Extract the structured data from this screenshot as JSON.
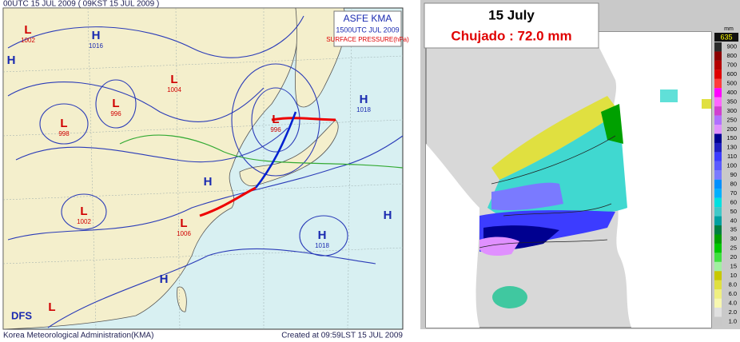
{
  "left_map": {
    "header": "00UTC 15 JUL 2009 ( 09KST 15 JUL 2009 )",
    "info_box": [
      "ASFE  KMA",
      "1500UTC JUL 2009",
      "SURFACE PRESSURE(hPa)"
    ],
    "logo": "DFS",
    "footer_left": "Korea Meteorological Administration(KMA)",
    "footer_right": "Created at 09:59LST 15 JUL 2009",
    "pressure_centers": [
      {
        "type": "L",
        "value": "1002"
      },
      {
        "type": "H",
        "value": "1016"
      },
      {
        "type": "H"
      },
      {
        "type": "L",
        "value": "996"
      },
      {
        "type": "L",
        "value": "998"
      },
      {
        "type": "L",
        "value": "1004"
      },
      {
        "type": "L",
        "value": "996"
      },
      {
        "type": "H"
      },
      {
        "type": "L",
        "value": "1002"
      },
      {
        "type": "L",
        "value": "1006"
      },
      {
        "type": "H",
        "value": "1018"
      },
      {
        "type": "H"
      },
      {
        "type": "H"
      },
      {
        "type": "L"
      },
      {
        "type": "H",
        "value": "1018"
      }
    ]
  },
  "right_map": {
    "title": "15 July",
    "subtitle": "Chujado : 72.0 mm",
    "max_label": "635",
    "unit": "mm",
    "legend": [
      {
        "label": "900",
        "color": "#2b2b2b"
      },
      {
        "label": "800",
        "color": "#8c0000"
      },
      {
        "label": "700",
        "color": "#b40000"
      },
      {
        "label": "600",
        "color": "#e00000"
      },
      {
        "label": "500",
        "color": "#ff3c3c"
      },
      {
        "label": "400",
        "color": "#ff00ff"
      },
      {
        "label": "350",
        "color": "#ff66ff"
      },
      {
        "label": "300",
        "color": "#d040d0"
      },
      {
        "label": "250",
        "color": "#b070ff"
      },
      {
        "label": "200",
        "color": "#e090ff"
      },
      {
        "label": "150",
        "color": "#000090"
      },
      {
        "label": "130",
        "color": "#2020c0"
      },
      {
        "label": "110",
        "color": "#3c3cff"
      },
      {
        "label": "100",
        "color": "#5a5aff"
      },
      {
        "label": "90",
        "color": "#7a7aff"
      },
      {
        "label": "80",
        "color": "#0090ff"
      },
      {
        "label": "70",
        "color": "#00b0ff"
      },
      {
        "label": "60",
        "color": "#00e0e0"
      },
      {
        "label": "50",
        "color": "#40c8c8"
      },
      {
        "label": "40",
        "color": "#00a0a0"
      },
      {
        "label": "35",
        "color": "#008040"
      },
      {
        "label": "30",
        "color": "#00a000"
      },
      {
        "label": "25",
        "color": "#00c800"
      },
      {
        "label": "20",
        "color": "#40e040"
      },
      {
        "label": "15",
        "color": "#a0f0a0"
      },
      {
        "label": "10",
        "color": "#c8c800"
      },
      {
        "label": "8.0",
        "color": "#e0e040"
      },
      {
        "label": "6.0",
        "color": "#f0f080"
      },
      {
        "label": "4.0",
        "color": "#f8f8b0"
      },
      {
        "label": "2.0",
        "color": "#e0e0e0"
      },
      {
        "label": "1.0",
        "color": "#c8c8c8"
      }
    ]
  }
}
